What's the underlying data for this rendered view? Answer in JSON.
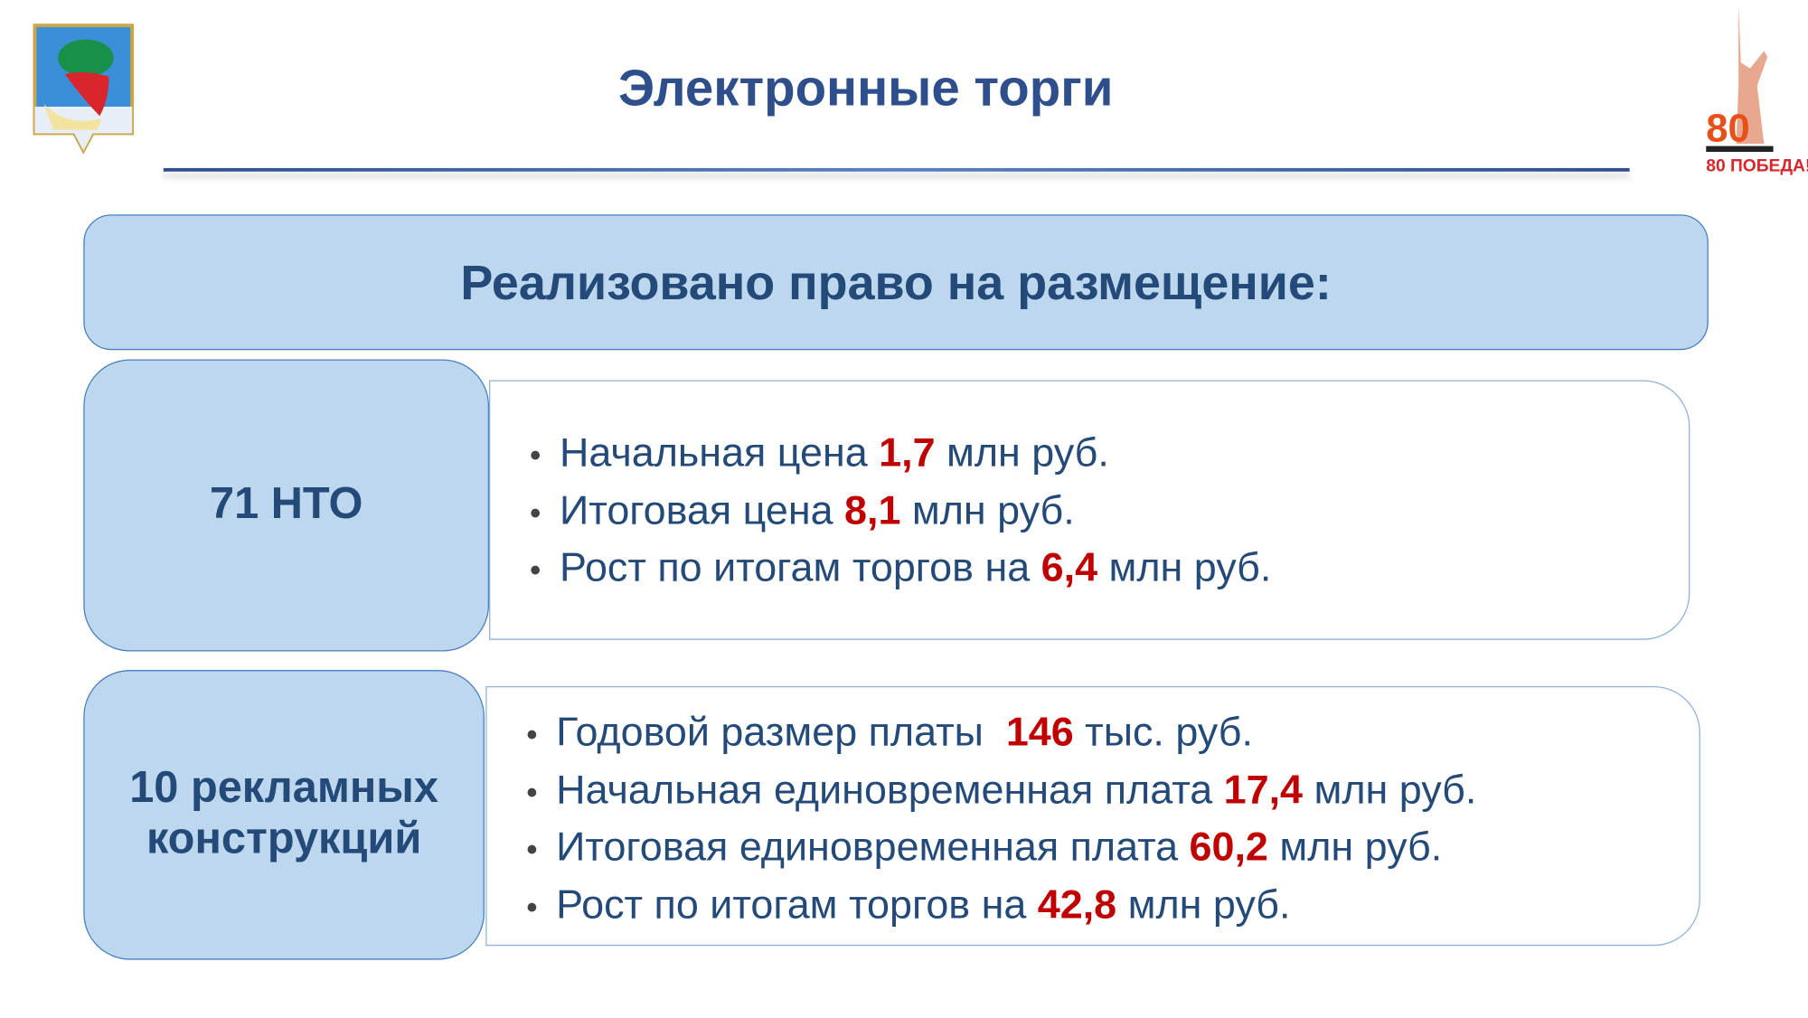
{
  "title": "Электронные торги",
  "logos": {
    "left": "coat-of-arms",
    "right": "80 ПОБЕДА!"
  },
  "header": "Реализовано право на размещение:",
  "colors": {
    "title": "#2e4e8c",
    "box": "#bdd7ee",
    "value": "#c00000"
  },
  "sections": [
    {
      "label": "71 НТО",
      "items": [
        {
          "pre": "Начальная цена ",
          "value": "1,7",
          "post": " млн руб."
        },
        {
          "pre": "Итоговая цена ",
          "value": "8,1",
          "post": " млн руб."
        },
        {
          "pre": "Рост по итогам торгов на ",
          "value": "6,4",
          "post": " млн руб."
        }
      ]
    },
    {
      "label": "10 рекламных конструкций",
      "items": [
        {
          "pre": "Годовой размер платы  ",
          "value": "146",
          "post": " тыс. руб."
        },
        {
          "pre": "Начальная единовременная плата ",
          "value": "17,4",
          "post": " млн руб."
        },
        {
          "pre": "Итоговая единовременная плата ",
          "value": "60,2",
          "post": " млн руб."
        },
        {
          "pre": "Рост по итогам торгов на ",
          "value": "42,8",
          "post": " млн руб."
        }
      ]
    }
  ]
}
